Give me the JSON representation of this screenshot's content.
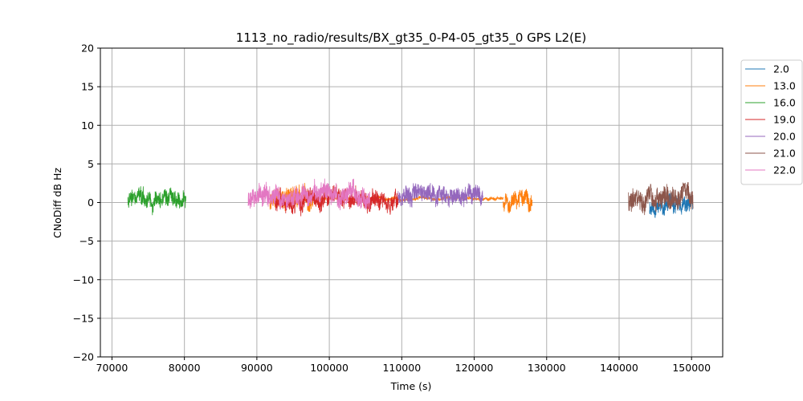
{
  "chart_data": {
    "type": "line",
    "title": "1113_no_radio/results/BX_gt35_0-P4-05_gt35_0 GPS L2(E)",
    "xlabel": "Time (s)",
    "ylabel": "CNoDiff dB Hz",
    "xlim": [
      68400,
      154300
    ],
    "ylim": [
      -20,
      20
    ],
    "xticks": [
      70000,
      80000,
      90000,
      100000,
      110000,
      120000,
      130000,
      140000,
      150000
    ],
    "xtick_labels": [
      "70000",
      "80000",
      "90000",
      "100000",
      "110000",
      "120000",
      "130000",
      "140000",
      "150000"
    ],
    "yticks": [
      -20,
      -15,
      -10,
      -5,
      0,
      5,
      10,
      15,
      20
    ],
    "ytick_labels": [
      "−20",
      "−15",
      "−10",
      "−5",
      "0",
      "5",
      "10",
      "15",
      "20"
    ],
    "grid": true,
    "legend_position": "outside-right-top",
    "series": [
      {
        "name": "2.0",
        "color": "#1f77b4",
        "segments": [
          {
            "x0": 144200,
            "x1": 150200,
            "mean": -0.5,
            "amp": 1.5,
            "seed": 11
          }
        ]
      },
      {
        "name": "13.0",
        "color": "#ff7f0e",
        "segments": [
          {
            "x0": 91800,
            "x1": 97800,
            "mean": 0.5,
            "amp": 2.0,
            "seed": 12
          },
          {
            "x0": 97800,
            "x1": 124000,
            "mean": 0.5,
            "amp": 0.3,
            "seed": 13
          },
          {
            "x0": 124000,
            "x1": 128000,
            "mean": 0.2,
            "amp": 1.6,
            "seed": 14
          }
        ]
      },
      {
        "name": "16.0",
        "color": "#2ca02c",
        "segments": [
          {
            "x0": 72200,
            "x1": 80200,
            "mean": 0.5,
            "amp": 1.5,
            "seed": 15
          }
        ]
      },
      {
        "name": "19.0",
        "color": "#d62728",
        "segments": [
          {
            "x0": 92500,
            "x1": 109500,
            "mean": 0.3,
            "amp": 1.6,
            "seed": 16
          }
        ]
      },
      {
        "name": "20.0",
        "color": "#9467bd",
        "segments": [
          {
            "x0": 109500,
            "x1": 121200,
            "mean": 1.0,
            "amp": 1.6,
            "seed": 17
          }
        ]
      },
      {
        "name": "21.0",
        "color": "#8c564b",
        "segments": [
          {
            "x0": 141300,
            "x1": 150200,
            "mean": 0.5,
            "amp": 2.0,
            "seed": 18
          }
        ]
      },
      {
        "name": "22.0",
        "color": "#e377c2",
        "segments": [
          {
            "x0": 88800,
            "x1": 105600,
            "mean": 0.8,
            "amp": 1.8,
            "seed": 19
          }
        ]
      }
    ]
  }
}
